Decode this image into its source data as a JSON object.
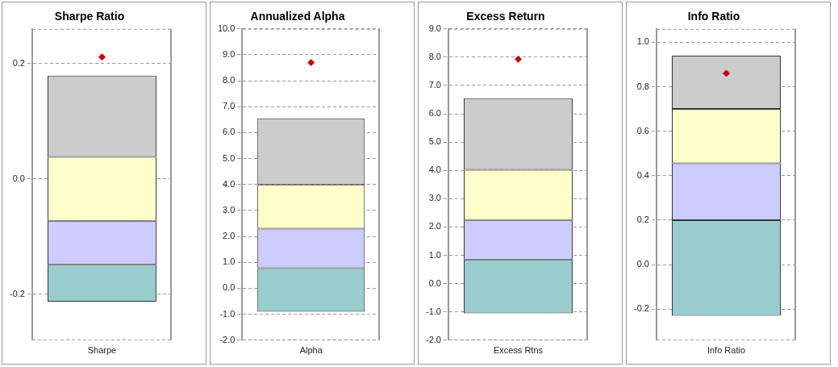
{
  "chart_data": [
    {
      "type": "bar",
      "title": "Sharpe Ratio",
      "categories": [
        "Sharpe"
      ],
      "ylim": [
        -0.28,
        0.26
      ],
      "yticks": [
        {
          "value": -0.2,
          "label": "-0.2"
        },
        {
          "value": 0,
          "label": "0.0"
        },
        {
          "value": 0.2,
          "label": "0.2"
        }
      ],
      "grid": "y",
      "marker": "diamond",
      "series": [
        {
          "color": "#99cccc",
          "base": [
            -0.213
          ],
          "values": [
            0.064
          ]
        },
        {
          "color": "#ccccff",
          "base": [
            -0.149
          ],
          "values": [
            0.076
          ]
        },
        {
          "color": "#ffffcc",
          "base": [
            -0.073
          ],
          "values": [
            0.111
          ]
        },
        {
          "color": "#cccccc",
          "base": [
            0.038
          ],
          "values": [
            0.141
          ]
        },
        {
          "type": "scatter",
          "color": "#cc0000",
          "x": [
            "Sharpe"
          ],
          "values": [
            0.211
          ]
        }
      ]
    },
    {
      "type": "bar",
      "title": "Annualized Alpha",
      "categories": [
        "Alpha"
      ],
      "ylim": [
        -2,
        10
      ],
      "yticks": [
        {
          "value": -2,
          "label": "-2.0"
        },
        {
          "value": -1,
          "label": "-1.0"
        },
        {
          "value": 0,
          "label": "0.0"
        },
        {
          "value": 1,
          "label": "1.0"
        },
        {
          "value": 2,
          "label": "2.0"
        },
        {
          "value": 3,
          "label": "3.0"
        },
        {
          "value": 4,
          "label": "4.0"
        },
        {
          "value": 5,
          "label": "5.0"
        },
        {
          "value": 6,
          "label": "6.0"
        },
        {
          "value": 7,
          "label": "7.0"
        },
        {
          "value": 8,
          "label": "8.0"
        },
        {
          "value": 9,
          "label": "9.0"
        },
        {
          "value": 10,
          "label": "10.0"
        }
      ],
      "grid": "y",
      "marker": "diamond",
      "series": [
        {
          "color": "#99cccc",
          "base": [
            -0.9
          ],
          "values": [
            1.68
          ]
        },
        {
          "color": "#ccccff",
          "base": [
            0.78
          ],
          "values": [
            1.52
          ]
        },
        {
          "color": "#ffffcc",
          "base": [
            2.3
          ],
          "values": [
            1.7
          ]
        },
        {
          "color": "#cccccc",
          "base": [
            4.0
          ],
          "values": [
            2.55
          ]
        },
        {
          "type": "scatter",
          "color": "#cc0000",
          "x": [
            "Alpha"
          ],
          "values": [
            8.7
          ]
        }
      ]
    },
    {
      "type": "bar",
      "title": "Excess Return",
      "categories": [
        "Excess Rtns"
      ],
      "ylim": [
        -2,
        9
      ],
      "yticks": [
        {
          "value": -2,
          "label": "-2.0"
        },
        {
          "value": -1,
          "label": "-1.0"
        },
        {
          "value": 0,
          "label": "0.0"
        },
        {
          "value": 1,
          "label": "1.0"
        },
        {
          "value": 2,
          "label": "2.0"
        },
        {
          "value": 3,
          "label": "3.0"
        },
        {
          "value": 4,
          "label": "4.0"
        },
        {
          "value": 5,
          "label": "5.0"
        },
        {
          "value": 6,
          "label": "6.0"
        },
        {
          "value": 7,
          "label": "7.0"
        },
        {
          "value": 8,
          "label": "8.0"
        },
        {
          "value": 9,
          "label": "9.0"
        }
      ],
      "grid": "y",
      "marker": "diamond",
      "series": [
        {
          "color": "#99cccc",
          "base": [
            -1.05
          ],
          "values": [
            1.9
          ]
        },
        {
          "color": "#ccccff",
          "base": [
            0.85
          ],
          "values": [
            1.38
          ]
        },
        {
          "color": "#ffffcc",
          "base": [
            2.23
          ],
          "values": [
            1.79
          ]
        },
        {
          "color": "#cccccc",
          "base": [
            4.02
          ],
          "values": [
            2.53
          ]
        },
        {
          "type": "scatter",
          "color": "#cc0000",
          "x": [
            "Excess Rtns"
          ],
          "values": [
            7.93
          ]
        }
      ]
    },
    {
      "type": "bar",
      "title": "Info Ratio",
      "categories": [
        "Info Ratio"
      ],
      "ylim": [
        -0.34,
        1.06
      ],
      "yticks": [
        {
          "value": -0.2,
          "label": "-0.2"
        },
        {
          "value": 0,
          "label": "0.0"
        },
        {
          "value": 0.2,
          "label": "0.2"
        },
        {
          "value": 0.4,
          "label": "0.4"
        },
        {
          "value": 0.6,
          "label": "0.6"
        },
        {
          "value": 0.8,
          "label": "0.8"
        },
        {
          "value": 1,
          "label": "1.0"
        }
      ],
      "grid": "y",
      "marker": "diamond",
      "series": [
        {
          "color": "#99cccc",
          "base": [
            -0.23
          ],
          "values": [
            0.43
          ]
        },
        {
          "color": "#ccccff",
          "base": [
            0.2
          ],
          "values": [
            0.255
          ]
        },
        {
          "color": "#ffffcc",
          "base": [
            0.455
          ],
          "values": [
            0.245
          ]
        },
        {
          "color": "#cccccc",
          "base": [
            0.7
          ],
          "values": [
            0.24
          ]
        },
        {
          "type": "scatter",
          "color": "#cc0000",
          "x": [
            "Info Ratio"
          ],
          "values": [
            0.86
          ]
        }
      ]
    }
  ]
}
